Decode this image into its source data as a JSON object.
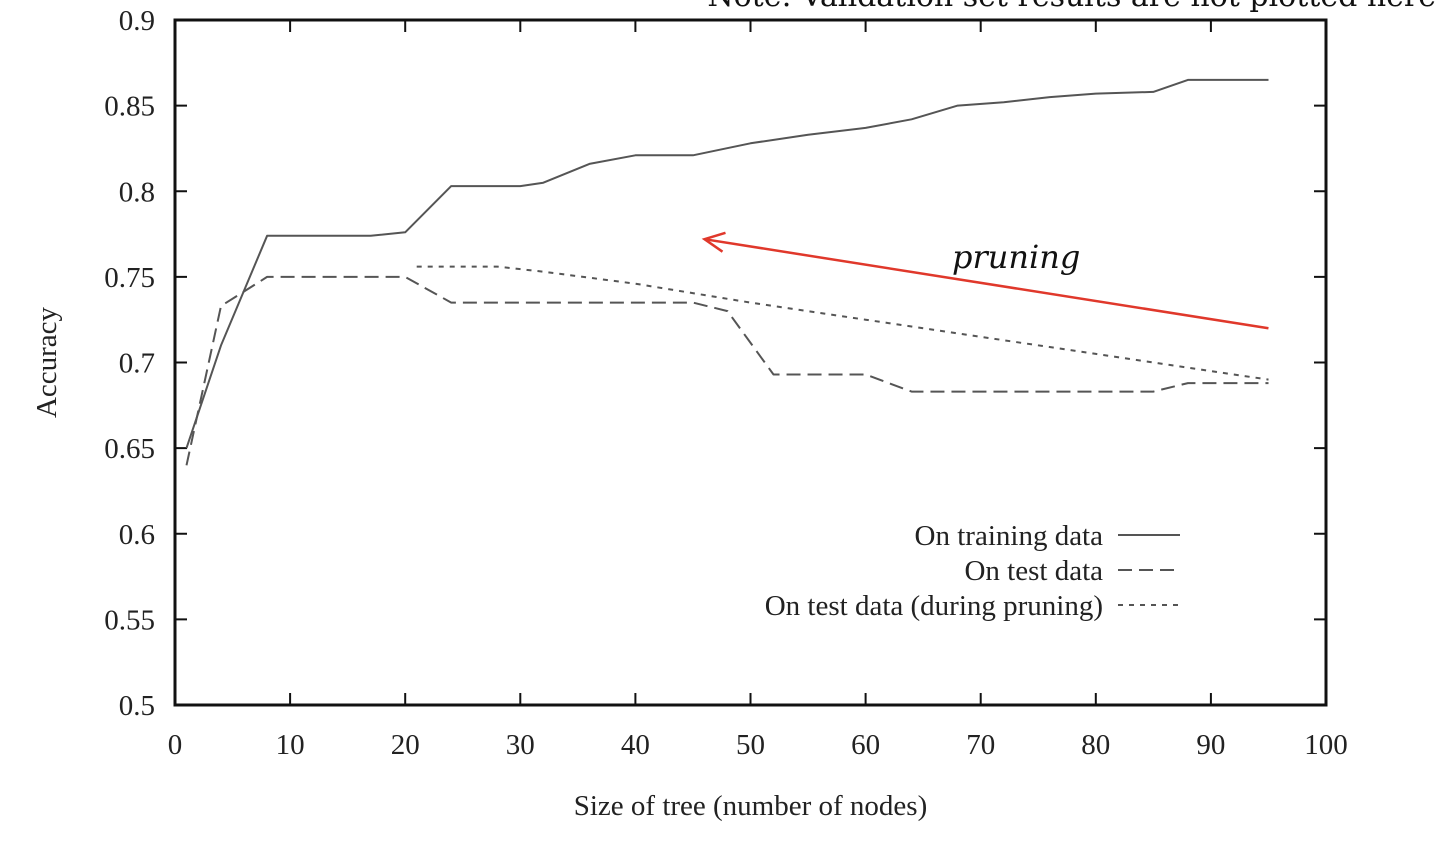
{
  "chart_data": {
    "type": "line",
    "title": "",
    "xlabel": "Size of tree (number of nodes)",
    "ylabel": "Accuracy",
    "xlim": [
      0,
      100
    ],
    "ylim": [
      0.5,
      0.9
    ],
    "xticks": [
      0,
      10,
      20,
      30,
      40,
      50,
      60,
      70,
      80,
      90,
      100
    ],
    "yticks": [
      0.5,
      0.55,
      0.6,
      0.65,
      0.7,
      0.75,
      0.8,
      0.85,
      0.9
    ],
    "ytick_labels": [
      "0.5",
      "0.55",
      "0.6",
      "0.65",
      "0.7",
      "0.75",
      "0.8",
      "0.85",
      "0.9"
    ],
    "grid": false,
    "legend_position": "bottom-right",
    "series": [
      {
        "name": "On training data",
        "style": "solid",
        "color": "#555555",
        "x": [
          1,
          4,
          8,
          12,
          17,
          20,
          24,
          28,
          30,
          32,
          36,
          40,
          45,
          50,
          55,
          60,
          64,
          68,
          72,
          76,
          80,
          85,
          88,
          92,
          95
        ],
        "y": [
          0.65,
          0.71,
          0.774,
          0.774,
          0.774,
          0.776,
          0.803,
          0.803,
          0.803,
          0.805,
          0.816,
          0.821,
          0.821,
          0.828,
          0.833,
          0.837,
          0.842,
          0.85,
          0.852,
          0.855,
          0.857,
          0.858,
          0.865,
          0.865,
          0.865
        ]
      },
      {
        "name": "On test data",
        "style": "dashed",
        "color": "#555555",
        "x": [
          1,
          4,
          8,
          12,
          20,
          24,
          30,
          40,
          45,
          48,
          52,
          56,
          60,
          64,
          70,
          80,
          85,
          88,
          92,
          95
        ],
        "y": [
          0.64,
          0.733,
          0.75,
          0.75,
          0.75,
          0.735,
          0.735,
          0.735,
          0.735,
          0.73,
          0.693,
          0.693,
          0.693,
          0.683,
          0.683,
          0.683,
          0.683,
          0.688,
          0.688,
          0.688
        ]
      },
      {
        "name": "On test data (during pruning)",
        "style": "dotted",
        "color": "#555555",
        "x": [
          21,
          28,
          32,
          40,
          50,
          60,
          70,
          80,
          90,
          95
        ],
        "y": [
          0.756,
          0.756,
          0.753,
          0.746,
          0.735,
          0.725,
          0.715,
          0.705,
          0.695,
          0.69
        ]
      }
    ],
    "annotations": {
      "note": "Note: Validation set results are not plotted here",
      "arrow_label": "pruning",
      "arrow_color": "#e0382b",
      "arrow_from": [
        95,
        0.72
      ],
      "arrow_to": [
        46,
        0.772
      ]
    }
  }
}
